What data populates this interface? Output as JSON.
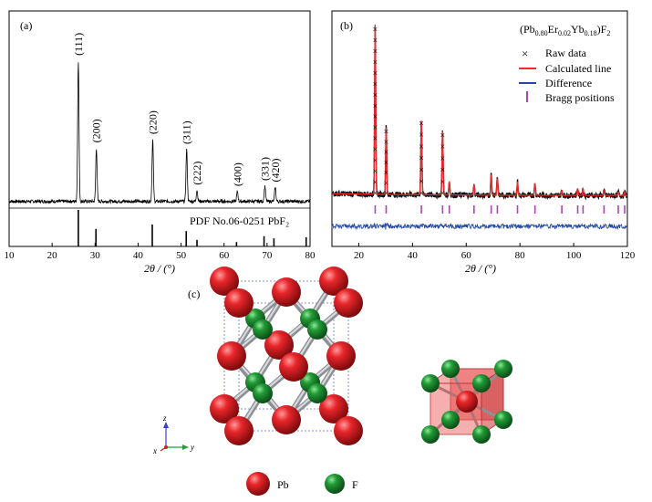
{
  "figure": {
    "panel_a": {
      "label": "(a)",
      "xlabel": "2θ / (°)",
      "pdf_label": "PDF No.06-0251 PbF₂",
      "xticks": [
        "10",
        "20",
        "30",
        "40",
        "50",
        "60",
        "70",
        "80"
      ]
    },
    "panel_b": {
      "label": "(b)",
      "xlabel": "2θ / (°)",
      "formula": "(Pb0.80Er0.02Yb0.18)F2",
      "legend": {
        "raw": "Raw data",
        "calc": "Calculated line",
        "diff": "Difference",
        "bragg": "Bragg positions"
      },
      "xticks": [
        "20",
        "40",
        "60",
        "80",
        "100",
        "120"
      ]
    },
    "panel_c": {
      "label": "(c)",
      "legend_pb": "Pb",
      "legend_f": "F",
      "axis_labels": {
        "z": "z",
        "y": "y",
        "x": "x"
      }
    }
  },
  "colors": {
    "pb": "#d8191e",
    "f": "#1b8a2c",
    "calc_line": "#ef2b2b",
    "diff_line": "#2349a7",
    "bragg": "#b042b7",
    "bond": "#a7a9ad",
    "cell_edge": "#6b6fd1"
  },
  "chart_data": [
    {
      "type": "line",
      "panel": "(a)",
      "xlabel": "2θ / (°)",
      "xlim": [
        10,
        80
      ],
      "peaks": [
        {
          "x": 26.1,
          "label": "(111)",
          "intensity": 100
        },
        {
          "x": 30.3,
          "label": "(200)",
          "intensity": 38
        },
        {
          "x": 43.4,
          "label": "(220)",
          "intensity": 44
        },
        {
          "x": 51.3,
          "label": "(311)",
          "intensity": 37
        },
        {
          "x": 53.7,
          "label": "(222)",
          "intensity": 8
        },
        {
          "x": 63.1,
          "label": "(400)",
          "intensity": 7
        },
        {
          "x": 69.5,
          "label": "(331)",
          "intensity": 11
        },
        {
          "x": 71.9,
          "label": "(420)",
          "intensity": 10
        }
      ],
      "reference_sticks": {
        "name": "PDF No.06-0251 PbF₂",
        "x": [
          26.1,
          30.2,
          43.3,
          51.2,
          53.7,
          62.9,
          69.3,
          71.6,
          79.1
        ],
        "values": [
          100,
          48,
          60,
          42,
          18,
          12,
          28,
          22,
          25
        ]
      }
    },
    {
      "type": "line",
      "panel": "(b)",
      "xlabel": "2θ / (°)",
      "xlim": [
        10,
        120
      ],
      "series": [
        {
          "name": "Raw data"
        },
        {
          "name": "Calculated line"
        },
        {
          "name": "Difference"
        },
        {
          "name": "Bragg positions",
          "x": [
            26.1,
            30.2,
            43.3,
            51.2,
            53.7,
            62.9,
            69.3,
            71.6,
            79.1,
            85.6,
            95.6,
            101.5,
            103.5,
            111.3,
            116.6,
            119.0
          ]
        }
      ],
      "peaks": [
        {
          "x": 26.1,
          "intensity": 100
        },
        {
          "x": 30.2,
          "intensity": 40
        },
        {
          "x": 43.3,
          "intensity": 45
        },
        {
          "x": 51.2,
          "intensity": 38
        },
        {
          "x": 53.7,
          "intensity": 8
        },
        {
          "x": 62.9,
          "intensity": 6
        },
        {
          "x": 69.3,
          "intensity": 12
        },
        {
          "x": 71.6,
          "intensity": 10
        },
        {
          "x": 79.1,
          "intensity": 8
        },
        {
          "x": 85.6,
          "intensity": 7
        },
        {
          "x": 95.6,
          "intensity": 3
        },
        {
          "x": 101.5,
          "intensity": 4
        },
        {
          "x": 103.5,
          "intensity": 4
        },
        {
          "x": 111.3,
          "intensity": 3
        },
        {
          "x": 116.6,
          "intensity": 2
        },
        {
          "x": 119.0,
          "intensity": 2
        }
      ]
    }
  ]
}
